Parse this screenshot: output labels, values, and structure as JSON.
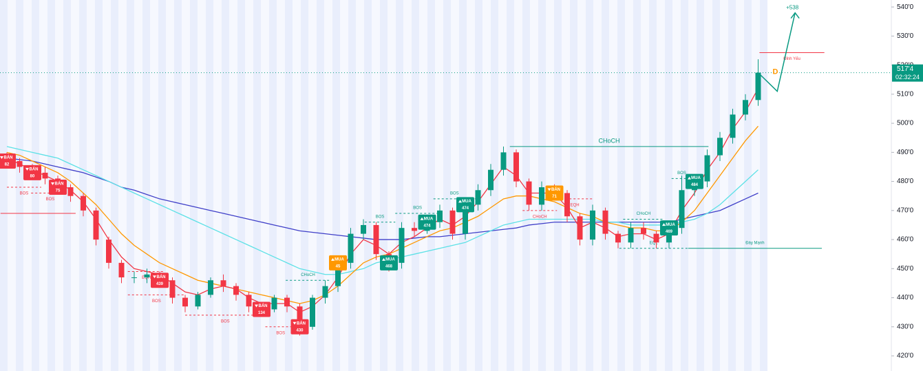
{
  "chart_data": {
    "type": "candlestick",
    "open": [
      489,
      487,
      485,
      483,
      481,
      478,
      475,
      470,
      460,
      452,
      447,
      447,
      448,
      446,
      440,
      437,
      441,
      446,
      444,
      441,
      437,
      436,
      440,
      437,
      430,
      440,
      444,
      452,
      462,
      465,
      455,
      452,
      464,
      463,
      466,
      470,
      462,
      472,
      477,
      484,
      490,
      480,
      472,
      478,
      476,
      468,
      460,
      470,
      462,
      459,
      464,
      462,
      459,
      464,
      477,
      480,
      489,
      495,
      503,
      508
    ],
    "high": [
      490,
      488,
      486,
      485,
      482,
      479,
      476,
      471,
      461,
      453,
      449,
      450,
      449,
      447,
      441,
      442,
      447,
      448,
      445,
      442,
      438,
      441,
      441,
      438,
      441,
      446,
      454,
      464,
      467,
      466,
      456,
      466,
      466,
      468,
      472,
      471,
      473,
      479,
      486,
      492,
      491,
      481,
      480,
      479,
      477,
      469,
      472,
      471,
      463,
      466,
      466,
      463,
      466,
      482,
      482,
      491,
      497,
      505,
      510,
      522
    ],
    "low": [
      485,
      483,
      481,
      479,
      476,
      473,
      468,
      458,
      450,
      445,
      445,
      445,
      444,
      438,
      435,
      436,
      440,
      442,
      439,
      435,
      434,
      435,
      435,
      427,
      429,
      438,
      442,
      450,
      460,
      453,
      449,
      450,
      461,
      462,
      464,
      460,
      460,
      470,
      475,
      482,
      478,
      470,
      470,
      474,
      466,
      458,
      458,
      460,
      457,
      457,
      460,
      457,
      457,
      462,
      475,
      478,
      487,
      493,
      501,
      506
    ],
    "close": [
      487,
      485,
      483,
      481,
      478,
      475,
      470,
      460,
      452,
      447,
      447,
      448,
      446,
      440,
      437,
      441,
      446,
      444,
      441,
      437,
      436,
      440,
      437,
      430,
      440,
      444,
      452,
      462,
      465,
      455,
      452,
      464,
      463,
      466,
      470,
      462,
      472,
      477,
      484,
      490,
      480,
      472,
      478,
      476,
      468,
      460,
      470,
      462,
      459,
      464,
      462,
      459,
      464,
      477,
      480,
      489,
      495,
      503,
      508,
      517.4
    ],
    "up_color": "#089981",
    "down_color": "#f23645",
    "series": [
      {
        "color": "#3f3fc8",
        "values": [
          488,
          487.5,
          487,
          486,
          485,
          484,
          483,
          481.5,
          480,
          478,
          477,
          475.5,
          474,
          473,
          472,
          471,
          470,
          469,
          468,
          467,
          466,
          465,
          464,
          463,
          462.5,
          462,
          461.5,
          461,
          460.5,
          460,
          460,
          460,
          460.5,
          461,
          461,
          461.5,
          462,
          462.5,
          463,
          463.5,
          464,
          465,
          465.5,
          466,
          466,
          466,
          466,
          466,
          466,
          466,
          466,
          466,
          466,
          467,
          468,
          469,
          470,
          472,
          474,
          476
        ]
      },
      {
        "color": "#5ce1e6",
        "values": [
          492,
          491,
          490,
          489,
          488,
          486,
          484,
          482,
          480,
          478,
          476,
          474,
          472,
          470,
          468,
          466,
          464,
          462,
          460,
          458,
          456,
          454,
          452,
          450,
          449,
          448,
          448,
          449,
          450,
          452,
          453,
          454,
          455,
          456,
          457,
          458,
          459,
          461,
          463,
          465,
          466,
          467,
          467,
          467,
          467,
          467,
          467,
          466,
          466,
          465,
          465,
          465,
          465,
          466,
          467,
          469,
          472,
          476,
          480,
          484
        ]
      },
      {
        "color": "#ff9800",
        "values": [
          490,
          489,
          487,
          485,
          483,
          480,
          476,
          472,
          467,
          462,
          458,
          455,
          452,
          450,
          448,
          446,
          445,
          444,
          443,
          442,
          441,
          440,
          439,
          438,
          439,
          441,
          444,
          448,
          452,
          454,
          455,
          457,
          459,
          461,
          463,
          464,
          466,
          468,
          471,
          474,
          475,
          475,
          474,
          473,
          471,
          469,
          468,
          466,
          465,
          464,
          464,
          463,
          463,
          466,
          470,
          476,
          482,
          488,
          494,
          499
        ]
      },
      {
        "color": "#f23645",
        "values": [
          488,
          486,
          484,
          482,
          480,
          477,
          473,
          467,
          460,
          454,
          450,
          449,
          448,
          445,
          442,
          441,
          443,
          444,
          443,
          440,
          438,
          438,
          438,
          435,
          437,
          441,
          447,
          455,
          460,
          458,
          455,
          459,
          461,
          464,
          467,
          465,
          468,
          473,
          479,
          485,
          482,
          476,
          476,
          476,
          471,
          464,
          466,
          464,
          461,
          462,
          462,
          460,
          462,
          470,
          476,
          484,
          490,
          498,
          504,
          512
        ]
      }
    ],
    "ylim": [
      414.8,
      542.4
    ],
    "yticks": [
      {
        "value": 420,
        "label": "420'0"
      },
      {
        "value": 430,
        "label": "430'0"
      },
      {
        "value": 440,
        "label": "440'0"
      },
      {
        "value": 450,
        "label": "450'0"
      },
      {
        "value": 460,
        "label": "460'0"
      },
      {
        "value": 470,
        "label": "470'0"
      },
      {
        "value": 480,
        "label": "480'0"
      },
      {
        "value": 490,
        "label": "490'0"
      },
      {
        "value": 500,
        "label": "500'0"
      },
      {
        "value": 510,
        "label": "510'0"
      },
      {
        "value": 520,
        "label": "520'0"
      },
      {
        "value": 530,
        "label": "530'0"
      },
      {
        "value": 540,
        "label": "540'0"
      }
    ],
    "last_price": {
      "value": 517.4,
      "label": "517'4"
    },
    "countdown": "02:32:24",
    "annotations": [
      {
        "text": "BOS",
        "level": 478,
        "from": 0,
        "to": 2.7,
        "color": "#f23645"
      },
      {
        "text": "BOS",
        "level": 476,
        "from": 1.9,
        "to": 4.9,
        "color": "#f23645"
      },
      {
        "level": 469,
        "from": -0.5,
        "to": 5.4,
        "color": "#f23645"
      },
      {
        "text": "EQH",
        "level": 449,
        "from": 9.5,
        "to": 12.4,
        "color": "#f23645"
      },
      {
        "text": "BOS",
        "level": 441,
        "from": 9.5,
        "to": 14,
        "color": "#f23645"
      },
      {
        "text": "BOS",
        "level": 434,
        "from": 14,
        "to": 20.3,
        "color": "#f23645"
      },
      {
        "text": "BOS",
        "level": 430,
        "from": 20.3,
        "to": 22.7,
        "color": "#f23645"
      },
      {
        "text": "CHoCH",
        "level": 446,
        "from": 21.9,
        "to": 25.4,
        "color": "#089981"
      },
      {
        "text": "BOS",
        "level": 466,
        "from": 28.1,
        "to": 30.5,
        "color": "#089981"
      },
      {
        "text": "BOS",
        "level": 469,
        "from": 30.5,
        "to": 34,
        "color": "#089981"
      },
      {
        "text": "BOS",
        "level": 474,
        "from": 33.5,
        "to": 36.8,
        "color": "#089981"
      },
      {
        "text": "CHoCH",
        "level": 492,
        "from": 39.5,
        "to": 55.1,
        "color": "#089981"
      },
      {
        "text": "CHoCH",
        "level": 470,
        "from": 40.5,
        "to": 43.2,
        "color": "#f23645"
      },
      {
        "text": "EQH",
        "level": 474,
        "from": 43.2,
        "to": 46,
        "color": "#f23645"
      },
      {
        "text": "CHoCH",
        "level": 467,
        "from": 48.4,
        "to": 51.6,
        "color": "#089981"
      },
      {
        "text": "BOS",
        "level": 481,
        "from": 52.2,
        "to": 53.8,
        "color": "#089981"
      },
      {
        "text": "EQL",
        "level": 457,
        "from": 48.1,
        "to": 53.5,
        "color": "#089981"
      },
      {
        "text": "Đáy Mạnh",
        "level": 457,
        "from": 53.5,
        "to": 64,
        "color": "#089981"
      },
      {
        "text": "Đỉnh Yếu",
        "level": 524.3,
        "from": 59.1,
        "to": 64.2,
        "color": "#f23645"
      }
    ],
    "signals": [
      {
        "text": "BÁN",
        "label": "82",
        "at": 0,
        "color": "#f23645"
      },
      {
        "text": "BÁN",
        "label": "80",
        "at": 2,
        "color": "#f23645"
      },
      {
        "text": "BÁN",
        "label": "75",
        "at": 4,
        "color": "#f23645"
      },
      {
        "text": "BÁN",
        "label": "439",
        "at": 12,
        "color": "#f23645"
      },
      {
        "text": "BÁN",
        "label": "134",
        "at": 20,
        "color": "#f23645"
      },
      {
        "text": "BÁN",
        "label": "430",
        "at": 23,
        "color": "#f23645"
      },
      {
        "text": "MUA",
        "label": "45",
        "at": 26,
        "color": "#ff9800"
      },
      {
        "text": "MUA",
        "label": "468",
        "at": 30,
        "color": "#089981"
      },
      {
        "text": "MUA",
        "label": "474",
        "at": 33,
        "color": "#089981"
      },
      {
        "text": "MUA",
        "label": "474",
        "at": 36,
        "color": "#089981"
      },
      {
        "text": "BÁN",
        "label": "71",
        "at": 43,
        "color": "#ff9800"
      },
      {
        "text": "MUA",
        "label": "469",
        "at": 52,
        "color": "#089981"
      },
      {
        "text": "MUA",
        "label": "484",
        "at": 54,
        "color": "#089981"
      }
    ],
    "projection": {
      "x": [
        59,
        60.5,
        61.9
      ],
      "values": [
        517.4,
        511,
        538
      ],
      "label": "+538",
      "tag": "D",
      "color": "#089981",
      "tag_color": "#ff9800"
    }
  }
}
